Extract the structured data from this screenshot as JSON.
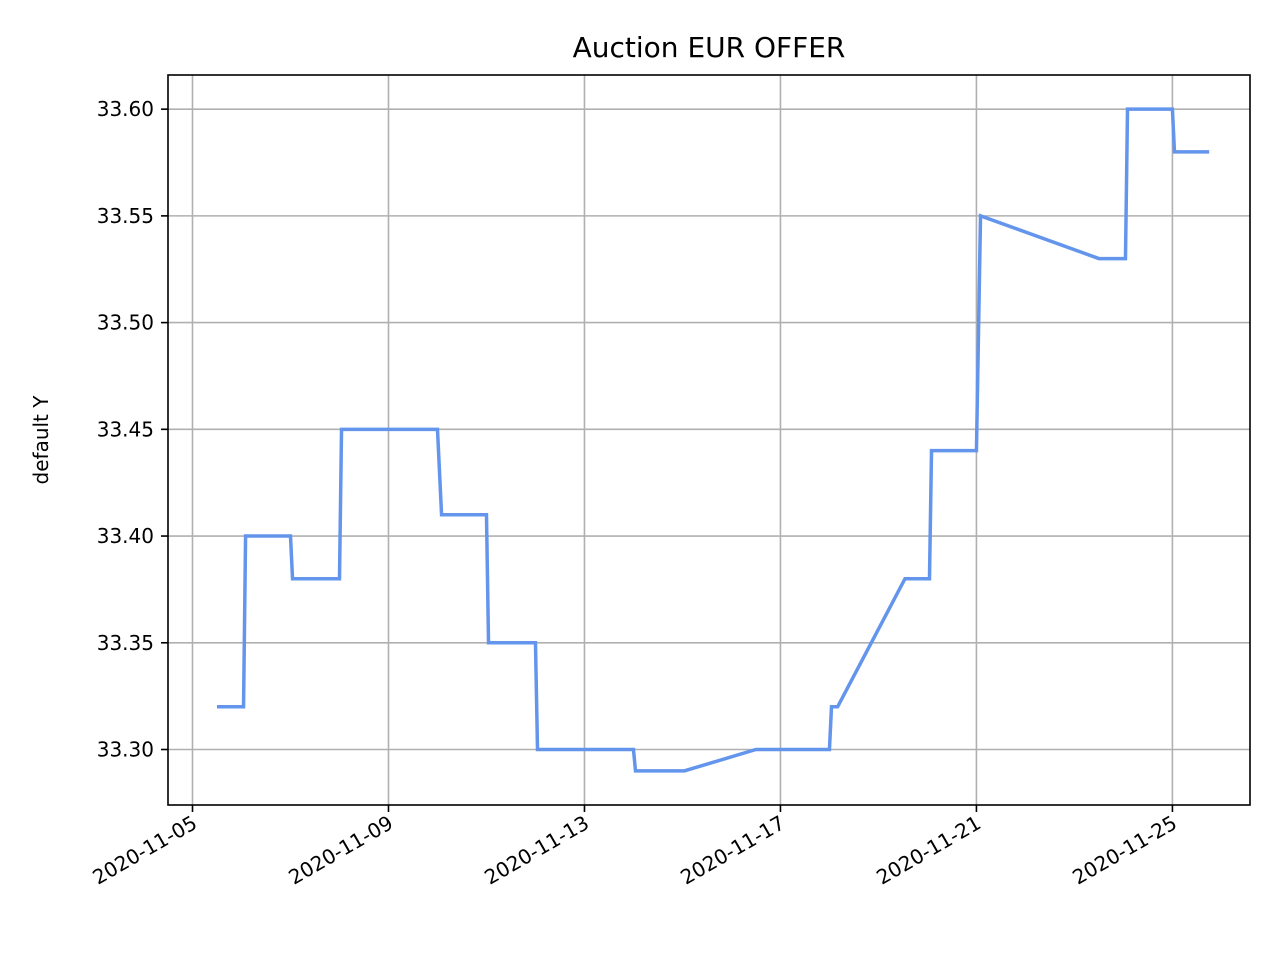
{
  "chart_data": {
    "type": "line",
    "title": "Auction EUR  OFFER",
    "xlabel": "",
    "ylabel": "default Y",
    "grid": true,
    "x_ticks": [
      "2020-11-05",
      "2020-11-09",
      "2020-11-13",
      "2020-11-17",
      "2020-11-21",
      "2020-11-25"
    ],
    "y_ticks": [
      "33.30",
      "33.35",
      "33.40",
      "33.45",
      "33.50",
      "33.55",
      "33.60"
    ],
    "xlim": [
      "2020-11-04 12:00",
      "2020-11-26 14:00"
    ],
    "ylim": [
      33.274,
      33.616
    ],
    "color": "#6495ED",
    "series": [
      {
        "x": [
          "2020-11-05 12:00",
          "2020-11-06 01:00",
          "2020-11-06 02:00",
          "2020-11-07 00:00",
          "2020-11-07 01:00",
          "2020-11-08 00:00",
          "2020-11-08 01:00",
          "2020-11-10 00:00",
          "2020-11-10 02:00",
          "2020-11-11 00:00",
          "2020-11-11 01:00",
          "2020-11-12 00:00",
          "2020-11-12 01:00",
          "2020-11-14 00:00",
          "2020-11-14 01:00",
          "2020-11-15 01:00",
          "2020-11-16 12:00",
          "2020-11-18 00:00",
          "2020-11-18 01:00",
          "2020-11-18 04:00",
          "2020-11-19 13:00",
          "2020-11-20 01:00",
          "2020-11-20 02:00",
          "2020-11-21 00:00",
          "2020-11-21 02:00",
          "2020-11-23 12:00",
          "2020-11-24 01:00",
          "2020-11-24 02:00",
          "2020-11-25 00:00",
          "2020-11-25 01:00",
          "2020-11-25 18:00"
        ],
        "y": [
          33.32,
          33.32,
          33.4,
          33.4,
          33.38,
          33.38,
          33.45,
          33.45,
          33.41,
          33.41,
          33.35,
          33.35,
          33.3,
          33.3,
          33.29,
          33.29,
          33.3,
          33.3,
          33.32,
          33.32,
          33.38,
          33.38,
          33.44,
          33.44,
          33.55,
          33.53,
          33.53,
          33.6,
          33.6,
          33.58,
          33.58
        ]
      }
    ]
  }
}
